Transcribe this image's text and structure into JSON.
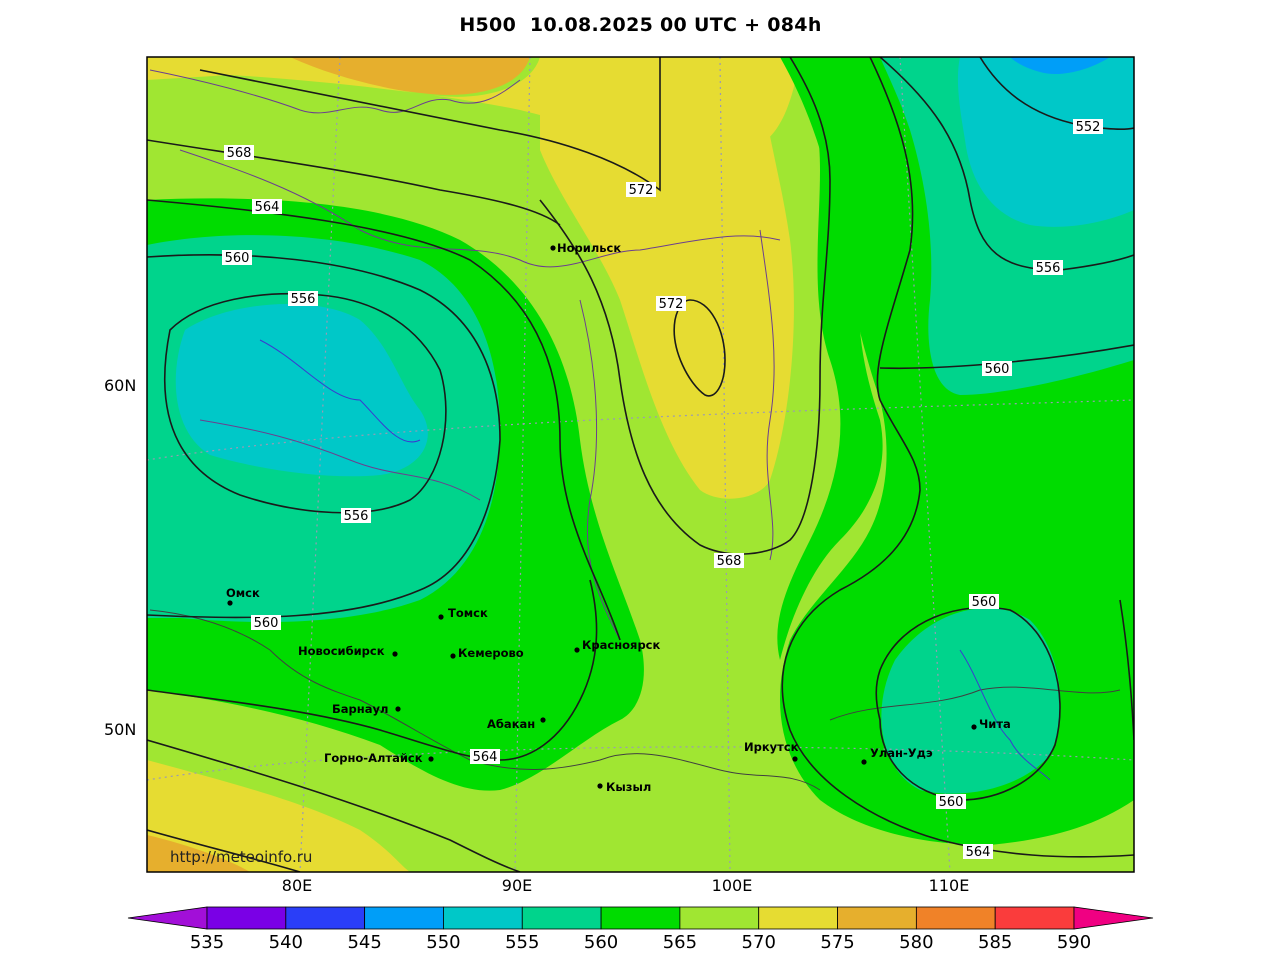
{
  "title": "H500  10.08.2025 00 UTC + 084h",
  "watermark": "http://meteoinfo.ru",
  "lat_labels": [
    "60N",
    "50N"
  ],
  "lon_labels": [
    "80E",
    "90E",
    "100E",
    "110E"
  ],
  "cities": [
    "Норильск",
    "Омск",
    "Томск",
    "Новосибирск",
    "Кемерово",
    "Красноярск",
    "Барнаул",
    "Абакан",
    "Горно-Алтайск",
    "Кызыл",
    "Иркутск",
    "Улан-Удэ",
    "Чита"
  ],
  "contour_labels": [
    "568",
    "564",
    "560",
    "556",
    "572",
    "572",
    "552",
    "556",
    "560",
    "556",
    "560",
    "568",
    "560",
    "564",
    "560",
    "564"
  ],
  "colorbar": {
    "ticks": [
      "535",
      "540",
      "545",
      "550",
      "555",
      "560",
      "565",
      "570",
      "575",
      "580",
      "585",
      "590"
    ],
    "colors": [
      "#a20fd8",
      "#7a00e6",
      "#2a3ef8",
      "#009ef8",
      "#00c8c8",
      "#00d48c",
      "#00dc00",
      "#a0e632",
      "#e6dc32",
      "#e6af2d",
      "#f08228",
      "#fa3c3c",
      "#f00082"
    ]
  }
}
